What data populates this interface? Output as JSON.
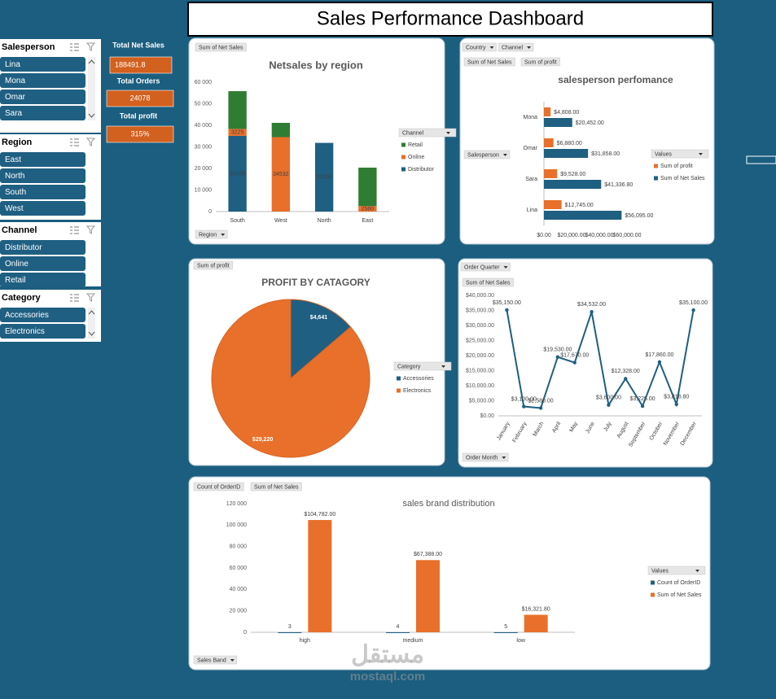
{
  "title": "Sales Performance Dashboard",
  "slicers": [
    {
      "title": "Salesperson",
      "items": [
        "Lina",
        "Mona",
        "Omar",
        "Sara"
      ]
    },
    {
      "title": "Region",
      "items": [
        "East",
        "North",
        "South",
        "West"
      ]
    },
    {
      "title": "Channel",
      "items": [
        "Distributor",
        "Online",
        "Retail"
      ]
    },
    {
      "title": "Category",
      "items": [
        "Accessories",
        "Electronics"
      ]
    }
  ],
  "kpis": [
    {
      "label": "Total Net Sales",
      "value": "188491.8"
    },
    {
      "label": "Total Orders",
      "value": "24078"
    },
    {
      "label": "Total profit",
      "value": "315%"
    }
  ],
  "watermark": {
    "arabic": "مستقل",
    "latin": "mostaql.com"
  },
  "chart_data": [
    {
      "type": "stacked_bar",
      "title": "Netsales by region",
      "buttons": [
        "Sum of Net Sales",
        "Region"
      ],
      "legend_title": "Channel",
      "categories": [
        "South",
        "West",
        "North",
        "East"
      ],
      "series": [
        {
          "name": "Retail",
          "color": "#2e7d32",
          "values": [
            17500,
            6600,
            null,
            17800
          ]
        },
        {
          "name": "Online",
          "color": "#e8702a",
          "values": [
            3225,
            34532,
            null,
            2580
          ],
          "data_labels": true
        },
        {
          "name": "Distributor",
          "color": "#1f5f82",
          "values": [
            35108,
            null,
            31858,
            null
          ],
          "data_labels": true
        }
      ],
      "ylim": [
        0,
        60000
      ],
      "yticks": [
        0,
        {
          "value": 10000,
          "label": "10 000"
        },
        {
          "value": 20000,
          "label": "20 000"
        },
        {
          "value": 30000,
          "label": "30 000"
        },
        {
          "value": 40000,
          "label": "40 000"
        },
        {
          "value": 50000,
          "label": "50 000"
        },
        {
          "value": 60000,
          "label": "60 000"
        }
      ],
      "grid": false
    },
    {
      "type": "hbar",
      "title": "salesperson perfomance",
      "buttons": [
        "Country",
        "Channel",
        "Sum of Net Sales",
        "Sum of profit",
        "Salesperson"
      ],
      "legend_title": "Values",
      "categories": [
        "Mona",
        "Omar",
        "Sara",
        "Lina"
      ],
      "series": [
        {
          "name": "Sum of profit",
          "color": "#e8702a",
          "values": [
            4808,
            6880,
            9528,
            12745
          ],
          "value_labels": [
            "$4,808.00",
            "$6,880.00",
            "$9,528.00",
            "$12,745.00"
          ]
        },
        {
          "name": "Sum of Net Sales",
          "color": "#1f5f82",
          "values": [
            20452,
            31858,
            41336.8,
            56095
          ],
          "value_labels": [
            "$20,452.00",
            "$31,858.00",
            "$41,336.80",
            "$56,095.00"
          ]
        }
      ],
      "xlim": [
        0,
        60000
      ],
      "xticks": [
        {
          "value": 0,
          "label": "$0.00"
        },
        {
          "value": 20000,
          "label": "$20,000.00"
        },
        {
          "value": 40000,
          "label": "$40,000.00"
        },
        {
          "value": 60000,
          "label": "$60,000.00"
        }
      ],
      "grid": false
    },
    {
      "type": "pie",
      "title": "PROFIT BY CATAGORY",
      "buttons": [
        "Sum of profit"
      ],
      "legend_title": "Category",
      "categories": [
        "Accessories",
        "Electronics"
      ],
      "values": [
        4641,
        29220
      ],
      "value_labels": [
        "$4,641",
        "$29,220"
      ],
      "colors": [
        "#1f5f82",
        "#e8702a"
      ]
    },
    {
      "type": "line",
      "buttons": [
        "Order Quarter",
        "Sum of Net Sales",
        "Order Month"
      ],
      "categories": [
        "January",
        "February",
        "March",
        "April",
        "May",
        "June",
        "July",
        "August",
        "September",
        "October",
        "November",
        "December"
      ],
      "values": [
        35150,
        3100,
        2580,
        19530,
        17670,
        34532,
        3600,
        12328,
        3225,
        17860,
        3816.8,
        35100
      ],
      "value_labels": [
        "$35,150.00",
        "$3,100.00",
        "$2,580.00",
        "$19,530.00",
        "$17,670.00",
        "$34,532.00",
        "$3,600.00",
        "$12,328.00",
        "$3,225.00",
        "$17,860.00",
        "$3,816.80",
        "$35,100.00"
      ],
      "color": "#1f5f82",
      "ylim": [
        0,
        40000
      ],
      "yticks": [
        {
          "value": 0,
          "label": "$0.00"
        },
        {
          "value": 5000,
          "label": "$5,000.00"
        },
        {
          "value": 10000,
          "label": "$10,000.00"
        },
        {
          "value": 15000,
          "label": "$15,000.00"
        },
        {
          "value": 20000,
          "label": "$20,000.00"
        },
        {
          "value": 25000,
          "label": "$25,000.00"
        },
        {
          "value": 30000,
          "label": "$30,000.00"
        },
        {
          "value": 35000,
          "label": "$35,000.00"
        },
        {
          "value": 40000,
          "label": "$40,000.00"
        }
      ],
      "grid": false
    },
    {
      "type": "grouped_bar",
      "title": "sales brand distribution",
      "buttons": [
        "Count of OrderID",
        "Sum of Net Sales",
        "Sales Band"
      ],
      "legend_title": "Values",
      "categories": [
        "high",
        "medium",
        "low"
      ],
      "series": [
        {
          "name": "Count of OrderID",
          "color": "#1f5f82",
          "values": [
            3,
            4,
            5
          ],
          "data_labels": true
        },
        {
          "name": "Sum of Net Sales",
          "color": "#e8702a",
          "values": [
            104782,
            67388,
            16321.8
          ],
          "value_labels": [
            "$104,782.00",
            "$67,388.00",
            "$16,321.80"
          ]
        }
      ],
      "ylim": [
        0,
        120000
      ],
      "yticks": [
        0,
        {
          "value": 20000,
          "label": "20 000"
        },
        {
          "value": 40000,
          "label": "40 000"
        },
        {
          "value": 60000,
          "label": "60 000"
        },
        {
          "value": 80000,
          "label": "80 000"
        },
        {
          "value": 100000,
          "label": "100 000"
        },
        {
          "value": 120000,
          "label": "120 000"
        }
      ],
      "grid": false
    }
  ]
}
